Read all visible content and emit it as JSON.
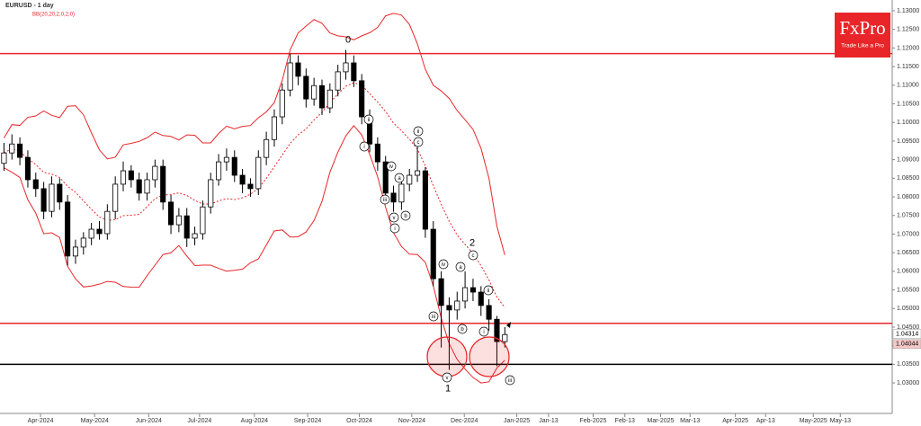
{
  "chart_data": {
    "type": "candlestick",
    "title": "EURUSD - 1 day",
    "indicator_label": "BB(20,20,2,0,2,0)",
    "brand": {
      "name": "FxPro",
      "tagline": "Trade Like a Pro"
    },
    "color_up": "#ffffff",
    "color_down": "#000000",
    "band_color": "#e8262a",
    "open": [
      1.089,
      1.0918,
      1.0942,
      1.0906,
      1.0846,
      1.0822,
      1.0761,
      1.0834,
      1.0786,
      1.0641,
      1.0665,
      1.0689,
      1.0713,
      1.0701,
      1.0761,
      1.0834,
      1.087,
      1.0846,
      1.081,
      1.0846,
      1.0882,
      1.0786,
      1.0725,
      1.0749,
      1.0689,
      1.0701,
      1.0773,
      1.0846,
      1.0894,
      1.0906,
      1.0858,
      1.0834,
      1.0822,
      1.0906,
      1.0954,
      1.1015,
      1.1087,
      1.116,
      1.1124,
      1.1063,
      1.1099,
      1.1039,
      1.1087,
      1.1136,
      1.116,
      1.1112,
      1.1015,
      1.0942,
      1.0894,
      1.081,
      1.0786,
      1.0834,
      1.0858,
      1.087,
      1.0713,
      1.058,
      1.0508,
      1.0496,
      1.052,
      1.0556,
      1.0544,
      1.0508,
      1.0471,
      1.0411
    ],
    "high": [
      1.0945,
      1.0968,
      1.096,
      1.0925,
      1.0865,
      1.084,
      1.0855,
      1.085,
      1.0805,
      1.0685,
      1.0705,
      1.073,
      1.0735,
      1.078,
      1.0855,
      1.0895,
      1.0885,
      1.0865,
      1.0865,
      1.09,
      1.09,
      1.0805,
      1.077,
      1.077,
      1.072,
      1.079,
      1.0865,
      1.0915,
      1.093,
      1.0925,
      1.0875,
      1.085,
      1.0925,
      1.0975,
      1.1035,
      1.1105,
      1.1185,
      1.118,
      1.1145,
      1.112,
      1.1115,
      1.1105,
      1.1155,
      1.1195,
      1.118,
      1.113,
      1.1035,
      1.096,
      1.091,
      1.083,
      1.085,
      1.0875,
      1.0935,
      1.088,
      1.0735,
      1.06,
      1.053,
      1.0545,
      1.06,
      1.058,
      1.056,
      1.0525,
      1.048,
      1.045
    ],
    "low": [
      1.087,
      1.09,
      1.0885,
      1.0825,
      1.08,
      1.074,
      1.0745,
      1.0765,
      1.0615,
      1.062,
      1.0645,
      1.067,
      1.0685,
      1.0685,
      1.074,
      1.0815,
      1.0825,
      1.079,
      1.079,
      1.0825,
      1.0765,
      1.07,
      1.0705,
      1.0665,
      1.067,
      1.0685,
      1.0755,
      1.083,
      1.087,
      1.084,
      1.081,
      1.08,
      1.0805,
      1.0885,
      1.0935,
      1.0995,
      1.107,
      1.11,
      1.104,
      1.1045,
      1.102,
      1.1025,
      1.107,
      1.1115,
      1.1095,
      1.0995,
      1.092,
      1.087,
      1.079,
      1.076,
      1.0765,
      1.0815,
      1.084,
      1.069,
      1.056,
      1.0395,
      1.0335,
      1.047,
      1.05,
      1.052,
      1.048,
      1.044,
      1.0345,
      1.0395
    ],
    "close": [
      1.0918,
      1.0942,
      1.0906,
      1.0846,
      1.0822,
      1.0761,
      1.0834,
      1.0786,
      1.0641,
      1.0665,
      1.0689,
      1.0713,
      1.0701,
      1.0761,
      1.0834,
      1.087,
      1.0846,
      1.081,
      1.0846,
      1.0882,
      1.0786,
      1.0725,
      1.0749,
      1.0689,
      1.0701,
      1.0773,
      1.0846,
      1.0894,
      1.0906,
      1.0858,
      1.0834,
      1.0822,
      1.0906,
      1.0954,
      1.1015,
      1.1087,
      1.116,
      1.1124,
      1.1063,
      1.1099,
      1.1039,
      1.1087,
      1.1136,
      1.116,
      1.1112,
      1.1015,
      1.0942,
      1.0894,
      1.081,
      1.0786,
      1.0834,
      1.0858,
      1.087,
      1.0713,
      1.058,
      1.0508,
      1.0496,
      1.052,
      1.0556,
      1.0544,
      1.0508,
      1.0471,
      1.0411,
      1.043
    ],
    "xlim": [
      -0.5,
      111.5
    ],
    "xticks": [
      {
        "value": 4.6,
        "label": "Apr-2024"
      },
      {
        "value": 11.4,
        "label": "May-2024"
      },
      {
        "value": 18.2,
        "label": "Jun-2024"
      },
      {
        "value": 24.6,
        "label": "Jul-2024"
      },
      {
        "value": 31.5,
        "label": "Aug-2024"
      },
      {
        "value": 38.2,
        "label": "Sep-2024"
      },
      {
        "value": 44.7,
        "label": "Oct-2024"
      },
      {
        "value": 51.3,
        "label": "Nov-2024"
      },
      {
        "value": 57.9,
        "label": "Dec-2024"
      },
      {
        "value": 64.5,
        "label": "Jan-2025"
      },
      {
        "value": 68.5,
        "label": "Jan-13"
      },
      {
        "value": 74.1,
        "label": "Feb-2025"
      },
      {
        "value": 78.1,
        "label": "Feb-13"
      },
      {
        "value": 82.6,
        "label": "Mar-2025"
      },
      {
        "value": 86.3,
        "label": "Mar-13"
      },
      {
        "value": 92,
        "label": "Apr-2025"
      },
      {
        "value": 95.8,
        "label": "Apr-13"
      },
      {
        "value": 101.8,
        "label": "May-2025"
      },
      {
        "value": 105.2,
        "label": "May-13"
      }
    ],
    "ylim": [
      1.0218,
      1.1329
    ],
    "yticks": [
      {
        "value": 1.13,
        "label": "1.13000"
      },
      {
        "value": 1.125,
        "label": "1.12500"
      },
      {
        "value": 1.12,
        "label": "1.12000"
      },
      {
        "value": 1.115,
        "label": "1.11500"
      },
      {
        "value": 1.11,
        "label": "1.11000"
      },
      {
        "value": 1.105,
        "label": "1.10500"
      },
      {
        "value": 1.1,
        "label": "1.10000"
      },
      {
        "value": 1.095,
        "label": "1.09500"
      },
      {
        "value": 1.09,
        "label": "1.09000"
      },
      {
        "value": 1.085,
        "label": "1.08500"
      },
      {
        "value": 1.08,
        "label": "1.08000"
      },
      {
        "value": 1.075,
        "label": "1.07500"
      },
      {
        "value": 1.07,
        "label": "1.07000"
      },
      {
        "value": 1.065,
        "label": "1.06500"
      },
      {
        "value": 1.06,
        "label": "1.06000"
      },
      {
        "value": 1.055,
        "label": "1.05500"
      },
      {
        "value": 1.05,
        "label": "1.05000"
      },
      {
        "value": 1.045,
        "label": "1.04500"
      },
      {
        "value": 1.04,
        "label": "1.04000"
      },
      {
        "value": 1.035,
        "label": "1.03500"
      },
      {
        "value": 1.03,
        "label": "1.03000"
      }
    ],
    "levels": [
      {
        "value": 1.1185,
        "color": "#e8262a"
      },
      {
        "value": 1.046,
        "color": "#e8262a"
      },
      {
        "value": 1.035,
        "color": "#000000"
      }
    ],
    "price_labels": [
      {
        "value": 1.04314,
        "color": "#ffffff"
      },
      {
        "value": 1.04044,
        "color": "#f6c8c8"
      }
    ],
    "annotations": [
      "0",
      "ii",
      "i",
      "iv",
      "a",
      "iii",
      "v",
      "b",
      "i",
      "ii",
      "c",
      "iv",
      "a",
      "iii",
      "v",
      "b",
      "1",
      "2",
      "c",
      "ii",
      "i",
      "iii"
    ]
  }
}
